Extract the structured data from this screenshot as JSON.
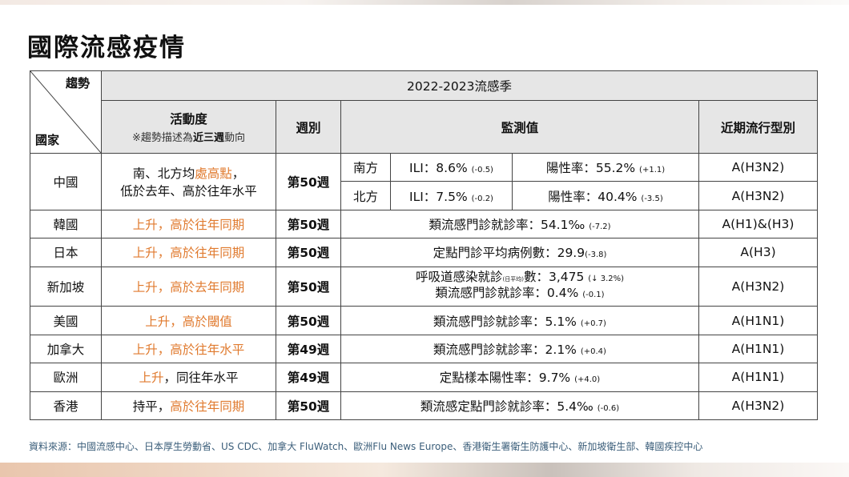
{
  "title": "國際流感疫情",
  "header": {
    "trend": "趨勢",
    "country": "國家",
    "season": "2022-2023流感季",
    "activity": "活動度",
    "activity_note_pre": "※趨勢描述為",
    "activity_note_bold": "近三週",
    "activity_note_post": "動向",
    "week": "週別",
    "surveillance": "監測值",
    "strain": "近期流行型別"
  },
  "china": {
    "country": "中國",
    "activity_pre": "南、北方均",
    "activity_hl": "處高點",
    "activity_post": "，",
    "activity_line2": "低於去年、高於往年水平",
    "week": "第50週",
    "south": {
      "region": "南方",
      "ili": "ILI：8.6%",
      "ili_change": "(-0.5)",
      "pos": "陽性率：55.2%",
      "pos_change": "(+1.1)",
      "strain": "A(H3N2)"
    },
    "north": {
      "region": "北方",
      "ili": "ILI：7.5%",
      "ili_change": "(-0.2)",
      "pos": "陽性率：40.4%",
      "pos_change": "(-3.5)",
      "strain": "A(H3N2)"
    }
  },
  "rows": [
    {
      "country": "韓國",
      "activity_hl": "上升，高於往年同期",
      "activity_plain": "",
      "week": "第50週",
      "value": "類流感門診就診率：54.1‰",
      "change": "(-7.2)",
      "strain": "A(H1)&(H3)"
    },
    {
      "country": "日本",
      "activity_hl": "上升，高於往年同期",
      "activity_plain": "",
      "week": "第50週",
      "value": "定點門診平均病例數：29.9",
      "change": "(-3.8)",
      "strain": "A(H3)"
    },
    {
      "country": "美國",
      "activity_hl": "上升，高於閾值",
      "activity_plain": "",
      "week": "第50週",
      "value": "類流感門診就診率：5.1%",
      "change": "(+0.7)",
      "strain": "A(H1N1)"
    },
    {
      "country": "加拿大",
      "activity_hl": "上升，高於往年水平",
      "activity_plain": "",
      "week": "第49週",
      "value": "類流感門診就診率：2.1%",
      "change": "(+0.4)",
      "strain": "A(H1N1)"
    },
    {
      "country": "歐洲",
      "activity_hl": "上升",
      "activity_plain": "，同往年水平",
      "week": "第49週",
      "value": "定點樣本陽性率：9.7%",
      "change": "(+4.0)",
      "strain": "A(H1N1)"
    },
    {
      "country": "香港",
      "activity_pre": "持平，",
      "activity_hl": "高於往年同期",
      "week": "第50週",
      "value": "類流感定點門診就診率：5.4‰",
      "change": "(-0.6)",
      "strain": "A(H3N2)"
    }
  ],
  "singapore": {
    "country": "新加坡",
    "activity_hl": "上升，高於去年同期",
    "week": "第50週",
    "line1_pre": "呼吸道感染就診",
    "line1_tiny": "(日平均)",
    "line1_post": "數：3,475",
    "line1_change": "(↓ 3.2%)",
    "line2": "類流感門診就診率：0.4%",
    "line2_change": "(-0.1)",
    "strain": "A(H3N2)"
  },
  "source": "資料來源：中國流感中心、日本厚生勞動省、US CDC、加拿大 FluWatch、歐洲Flu News Europe、香港衛生署衛生防護中心、新加坡衛生部、韓國疾控中心",
  "colors": {
    "highlight": "#e07a2e",
    "header_bg": "#e6e6e6",
    "source_text": "#3b5e7a"
  }
}
